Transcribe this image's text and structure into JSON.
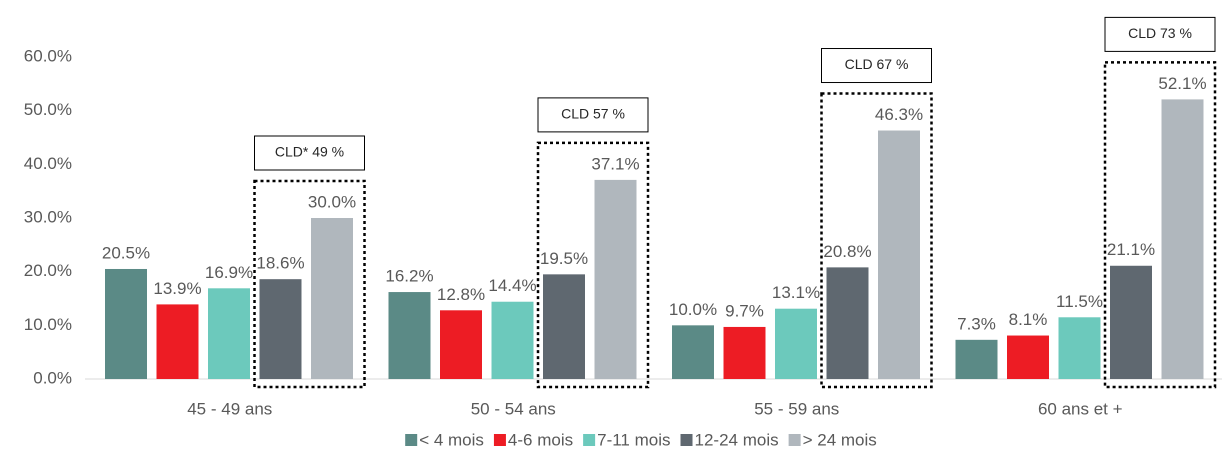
{
  "chart_data": {
    "type": "bar",
    "categories": [
      "45 - 49 ans",
      "50 - 54 ans",
      "55 - 59 ans",
      "60 ans et +"
    ],
    "series": [
      {
        "name": "< 4 mois",
        "color": "#5b8a86",
        "values": [
          20.5,
          16.2,
          10.0,
          7.3
        ],
        "value_labels": [
          "20.5%",
          "16.2%",
          "10.0%",
          "7.3%"
        ]
      },
      {
        "name": "4-6 mois",
        "color": "#ed1c24",
        "values": [
          13.9,
          12.8,
          9.7,
          8.1
        ],
        "value_labels": [
          "13.9%",
          "12.8%",
          "9.7%",
          "8.1%"
        ]
      },
      {
        "name": "7-11 mois",
        "color": "#6cc9bc",
        "values": [
          16.9,
          14.4,
          13.1,
          11.5
        ],
        "value_labels": [
          "16.9%",
          "14.4%",
          "13.1%",
          "11.5%"
        ]
      },
      {
        "name": "12-24 mois",
        "color": "#5f6870",
        "values": [
          18.6,
          19.5,
          20.8,
          21.1
        ],
        "value_labels": [
          "18.6%",
          "19.5%",
          "20.8%",
          "21.1%"
        ]
      },
      {
        "name": "> 24 mois",
        "color": "#b0b7bd",
        "values": [
          30.0,
          37.1,
          46.3,
          52.1
        ],
        "value_labels": [
          "30.0%",
          "37.1%",
          "46.3%",
          "52.1%"
        ]
      }
    ],
    "annotations": [
      "CLD* 49 %",
      "CLD 57 %",
      "CLD 67 %",
      "CLD 73 %"
    ],
    "ylim": [
      0,
      60
    ],
    "yticks": [
      {
        "value": 0,
        "label": "0.0%"
      },
      {
        "value": 10,
        "label": "10.0%"
      },
      {
        "value": 20,
        "label": "20.0%"
      },
      {
        "value": 30,
        "label": "30.0%"
      },
      {
        "value": 40,
        "label": "40.0%"
      },
      {
        "value": 50,
        "label": "50.0%"
      },
      {
        "value": 60,
        "label": "60.0%"
      }
    ],
    "legend": "bottom"
  }
}
